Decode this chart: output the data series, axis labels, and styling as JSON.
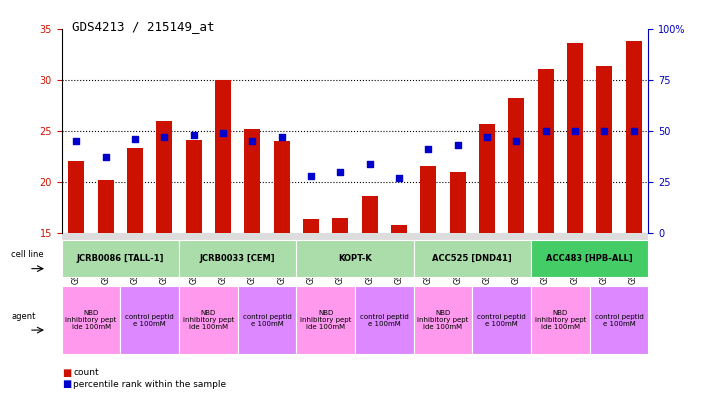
{
  "title": "GDS4213 / 215149_at",
  "samples": [
    "GSM518496",
    "GSM518497",
    "GSM518494",
    "GSM518495",
    "GSM542395",
    "GSM542396",
    "GSM542393",
    "GSM542394",
    "GSM542399",
    "GSM542400",
    "GSM542397",
    "GSM542398",
    "GSM542403",
    "GSM542404",
    "GSM542401",
    "GSM542402",
    "GSM542407",
    "GSM542408",
    "GSM542405",
    "GSM542406"
  ],
  "red_values": [
    22.0,
    20.2,
    23.3,
    26.0,
    24.1,
    30.0,
    25.2,
    24.0,
    16.3,
    16.4,
    18.6,
    15.8,
    21.6,
    21.0,
    25.7,
    28.2,
    31.1,
    33.6,
    31.4,
    33.8
  ],
  "blue_pct": [
    45,
    37,
    46,
    47,
    48,
    49,
    45,
    47,
    28,
    30,
    34,
    27,
    41,
    43,
    47,
    45,
    50,
    50,
    50,
    50
  ],
  "ylim_left": [
    15,
    35
  ],
  "ylim_right": [
    0,
    100
  ],
  "yticks_left": [
    15,
    20,
    25,
    30,
    35
  ],
  "yticks_right": [
    0,
    25,
    50,
    75,
    100
  ],
  "ytick_labels_right": [
    "0",
    "25",
    "50",
    "75",
    "100%"
  ],
  "cell_lines": [
    {
      "label": "JCRB0086 [TALL-1]",
      "start": 0,
      "end": 4,
      "color": "#AADDAA"
    },
    {
      "label": "JCRB0033 [CEM]",
      "start": 4,
      "end": 8,
      "color": "#AADDAA"
    },
    {
      "label": "KOPT-K",
      "start": 8,
      "end": 12,
      "color": "#AADDAA"
    },
    {
      "label": "ACC525 [DND41]",
      "start": 12,
      "end": 16,
      "color": "#AADDAA"
    },
    {
      "label": "ACC483 [HPB-ALL]",
      "start": 16,
      "end": 20,
      "color": "#44CC66"
    }
  ],
  "agents": [
    {
      "label": "NBD\ninhibitory pept\nide 100mM",
      "start": 0,
      "end": 2,
      "color": "#FF99EE"
    },
    {
      "label": "control peptid\ne 100mM",
      "start": 2,
      "end": 4,
      "color": "#DD88FF"
    },
    {
      "label": "NBD\ninhibitory pept\nide 100mM",
      "start": 4,
      "end": 6,
      "color": "#FF99EE"
    },
    {
      "label": "control peptid\ne 100mM",
      "start": 6,
      "end": 8,
      "color": "#DD88FF"
    },
    {
      "label": "NBD\ninhibitory pept\nide 100mM",
      "start": 8,
      "end": 10,
      "color": "#FF99EE"
    },
    {
      "label": "control peptid\ne 100mM",
      "start": 10,
      "end": 12,
      "color": "#DD88FF"
    },
    {
      "label": "NBD\ninhibitory pept\nide 100mM",
      "start": 12,
      "end": 14,
      "color": "#FF99EE"
    },
    {
      "label": "control peptid\ne 100mM",
      "start": 14,
      "end": 16,
      "color": "#DD88FF"
    },
    {
      "label": "NBD\ninhibitory pept\nide 100mM",
      "start": 16,
      "end": 18,
      "color": "#FF99EE"
    },
    {
      "label": "control peptid\ne 100mM",
      "start": 18,
      "end": 20,
      "color": "#DD88FF"
    }
  ],
  "bar_color": "#CC1100",
  "dot_color": "#0000CC",
  "bar_width": 0.55,
  "label_color_left": "#CC1100",
  "label_color_right": "#0000BB",
  "tick_fontsize": 7,
  "sample_tick_fontsize": 5.5,
  "chart_bg": "#FFFFFF",
  "fig_bg": "#FFFFFF"
}
